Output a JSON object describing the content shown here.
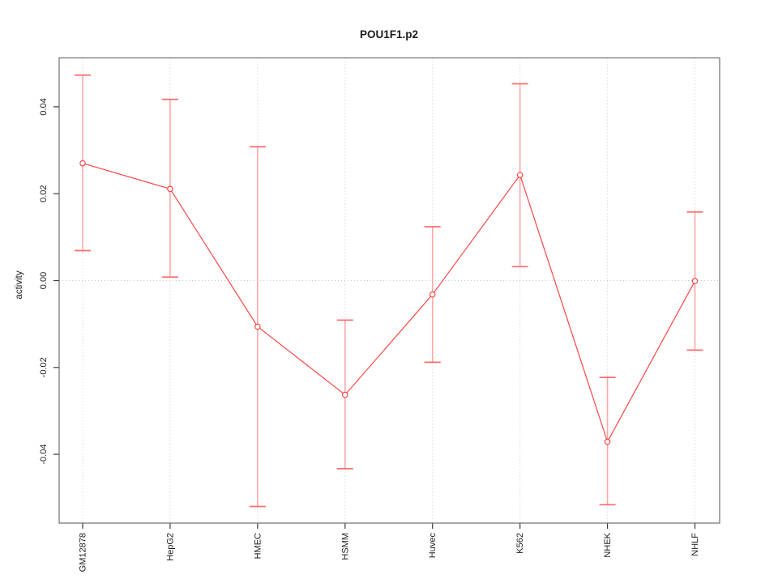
{
  "window": {
    "title": "POU1F1.p2"
  },
  "chart_data": {
    "type": "line",
    "title": "POU1F1.p2",
    "xlabel": "",
    "ylabel": "activity",
    "categories": [
      "GM12878",
      "HepG2",
      "HMEC",
      "HSMM",
      "Huvec",
      "K562",
      "NHEK",
      "NHLF"
    ],
    "series": [
      {
        "name": "POU1F1.p2 activity",
        "values": [
          0.027,
          0.0211,
          -0.0106,
          -0.0263,
          -0.0032,
          0.0243,
          -0.0371,
          -0.0001
        ],
        "error_lower": [
          0.0069,
          0.0008,
          -0.052,
          -0.0433,
          -0.0188,
          0.0032,
          -0.0516,
          -0.016
        ],
        "error_upper": [
          0.0473,
          0.0417,
          0.0308,
          -0.0091,
          0.0124,
          0.0453,
          -0.0223,
          0.0158
        ]
      }
    ],
    "y_ticks": [
      {
        "label": "0.04",
        "value": 0.04
      },
      {
        "label": "0.02",
        "value": 0.02
      },
      {
        "label": "0.00",
        "value": 0.0
      },
      {
        "label": "-0.02",
        "value": -0.02
      },
      {
        "label": "-0.04",
        "value": -0.04
      }
    ],
    "ylim": [
      -0.0556,
      0.0513
    ],
    "grid": {
      "vertical_dotted_per_category": true,
      "horizontal_dotted_at_zero": true
    },
    "legend": "none",
    "marker": "open-circle",
    "colors": {
      "series_line": "#ff4545",
      "point": "#ff4545",
      "point_fill": "#ffffff",
      "error_bar_line": "#ffa8a8",
      "error_bar_cap": "#ff6b6b",
      "grid_line": "#c9c9c9",
      "plot_border": "#6e6e6e",
      "tick": "#3a3a3a",
      "text": "#1c1c1c",
      "background": "#ffffff"
    }
  }
}
